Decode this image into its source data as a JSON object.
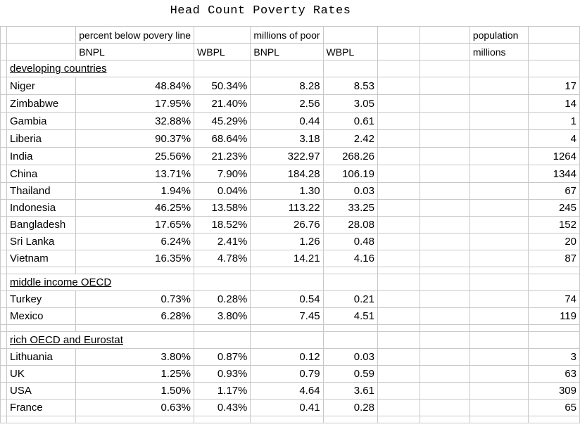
{
  "title": "Head Count Poverty Rates",
  "headers": {
    "group_percent": "percent below povery line",
    "group_millions": "millions of poor",
    "population": "population",
    "population_unit": "millions",
    "bnpl": "BNPL",
    "wbpl": "WBPL"
  },
  "sections": [
    {
      "name": "developing countries",
      "rows": [
        {
          "country": "Niger",
          "pct_bnpl": "48.84%",
          "pct_wbpl": "50.34%",
          "mil_bnpl": "8.28",
          "mil_wbpl": "8.53",
          "pop": "17"
        },
        {
          "country": "Zimbabwe",
          "pct_bnpl": "17.95%",
          "pct_wbpl": "21.40%",
          "mil_bnpl": "2.56",
          "mil_wbpl": "3.05",
          "pop": "14"
        },
        {
          "country": "Gambia",
          "pct_bnpl": "32.88%",
          "pct_wbpl": "45.29%",
          "mil_bnpl": "0.44",
          "mil_wbpl": "0.61",
          "pop": "1"
        },
        {
          "country": "Liberia",
          "pct_bnpl": "90.37%",
          "pct_wbpl": "68.64%",
          "mil_bnpl": "3.18",
          "mil_wbpl": "2.42",
          "pop": "4"
        },
        {
          "country": "India",
          "pct_bnpl": "25.56%",
          "pct_wbpl": "21.23%",
          "mil_bnpl": "322.97",
          "mil_wbpl": "268.26",
          "pop": "1264"
        },
        {
          "country": "China",
          "pct_bnpl": "13.71%",
          "pct_wbpl": "7.90%",
          "mil_bnpl": "184.28",
          "mil_wbpl": "106.19",
          "pop": "1344"
        },
        {
          "country": "Thailand",
          "pct_bnpl": "1.94%",
          "pct_wbpl": "0.04%",
          "mil_bnpl": "1.30",
          "mil_wbpl": "0.03",
          "pop": "67"
        },
        {
          "country": "Indonesia",
          "pct_bnpl": "46.25%",
          "pct_wbpl": "13.58%",
          "mil_bnpl": "113.22",
          "mil_wbpl": "33.25",
          "pop": "245"
        },
        {
          "country": "Bangladesh",
          "pct_bnpl": "17.65%",
          "pct_wbpl": "18.52%",
          "mil_bnpl": "26.76",
          "mil_wbpl": "28.08",
          "pop": "152"
        },
        {
          "country": "Sri Lanka",
          "pct_bnpl": "6.24%",
          "pct_wbpl": "2.41%",
          "mil_bnpl": "1.26",
          "mil_wbpl": "0.48",
          "pop": "20"
        },
        {
          "country": "Vietnam",
          "pct_bnpl": "16.35%",
          "pct_wbpl": "4.78%",
          "mil_bnpl": "14.21",
          "mil_wbpl": "4.16",
          "pop": "87"
        }
      ]
    },
    {
      "name": "middle income OECD",
      "rows": [
        {
          "country": "Turkey",
          "pct_bnpl": "0.73%",
          "pct_wbpl": "0.28%",
          "mil_bnpl": "0.54",
          "mil_wbpl": "0.21",
          "pop": "74"
        },
        {
          "country": "Mexico",
          "pct_bnpl": "6.28%",
          "pct_wbpl": "3.80%",
          "mil_bnpl": "7.45",
          "mil_wbpl": "4.51",
          "pop": "119"
        }
      ]
    },
    {
      "name": "rich OECD and Eurostat",
      "rows": [
        {
          "country": "Lithuania",
          "pct_bnpl": "3.80%",
          "pct_wbpl": "0.87%",
          "mil_bnpl": "0.12",
          "mil_wbpl": "0.03",
          "pop": "3"
        },
        {
          "country": "UK",
          "pct_bnpl": "1.25%",
          "pct_wbpl": "0.93%",
          "mil_bnpl": "0.79",
          "mil_wbpl": "0.59",
          "pop": "63"
        },
        {
          "country": "USA",
          "pct_bnpl": "1.50%",
          "pct_wbpl": "1.17%",
          "mil_bnpl": "4.64",
          "mil_wbpl": "3.61",
          "pop": "309"
        },
        {
          "country": "France",
          "pct_bnpl": "0.63%",
          "pct_wbpl": "0.43%",
          "mil_bnpl": "0.41",
          "mil_wbpl": "0.28",
          "pop": "65"
        }
      ]
    }
  ]
}
